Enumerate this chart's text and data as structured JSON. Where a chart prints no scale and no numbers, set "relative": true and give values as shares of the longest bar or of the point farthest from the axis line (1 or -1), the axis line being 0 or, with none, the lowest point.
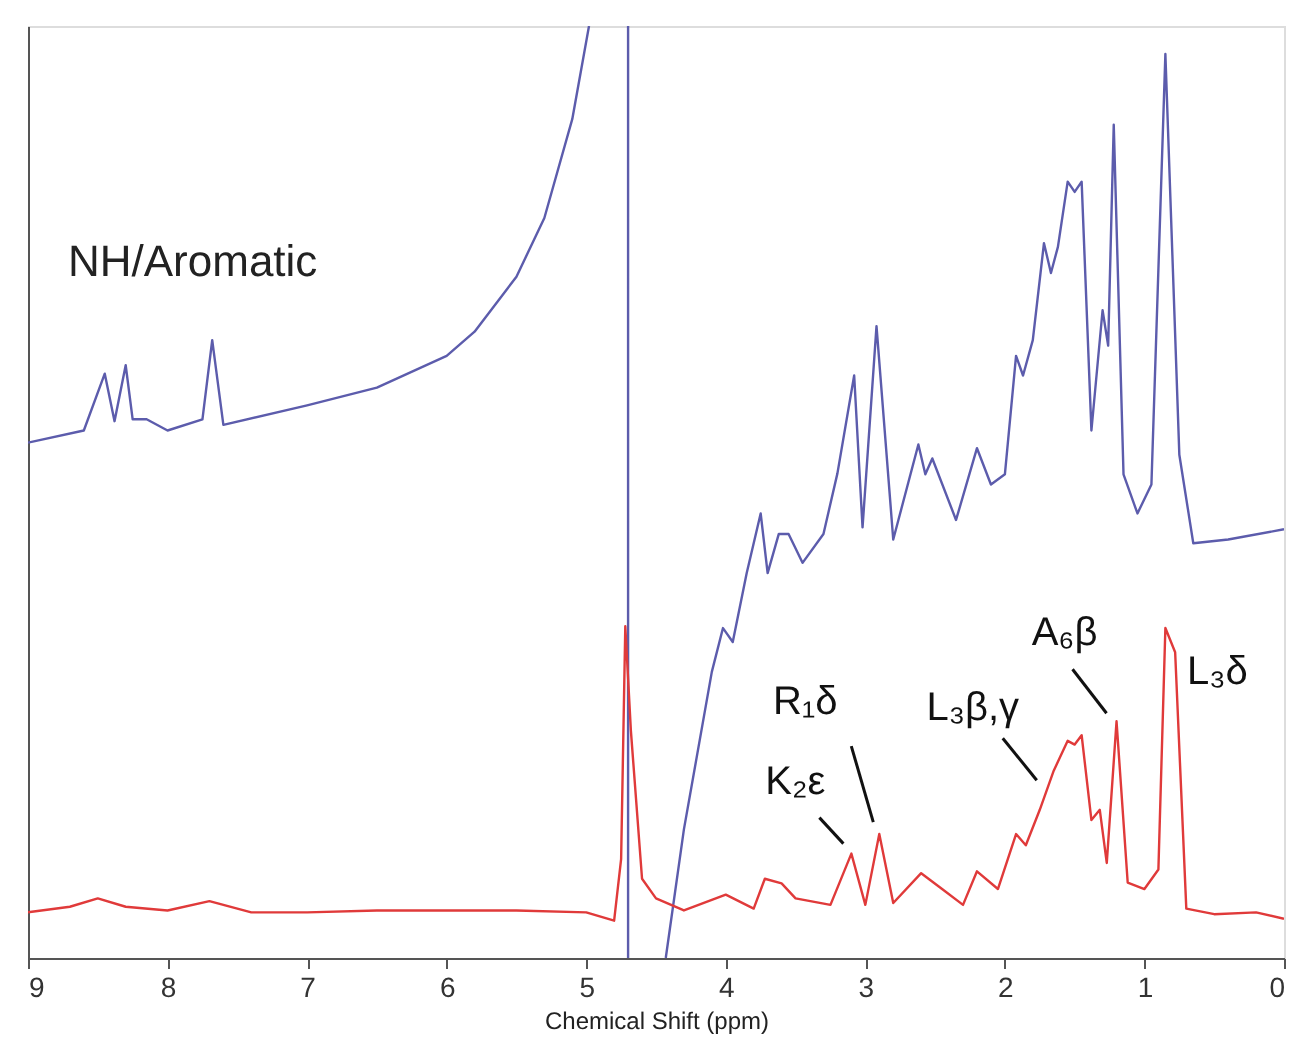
{
  "chart_data": {
    "type": "line",
    "relative": true,
    "xlabel": "Chemical Shift (ppm)",
    "xlim": [
      9,
      0
    ],
    "xticks": [
      9,
      8,
      7,
      6,
      5,
      4,
      3,
      2,
      1,
      0
    ],
    "grid": false,
    "marker": "none",
    "line_style": "solid",
    "annotations": [
      "NH/Aromatic",
      {
        "text": "K₂ε",
        "x": 3.1,
        "y": 0.112
      },
      {
        "text": "R₁δ",
        "x": 2.9,
        "y": 0.133
      },
      {
        "text": "L₃β,γ",
        "x": 1.7,
        "y": 0.18
      },
      {
        "text": "A₆β",
        "x": 1.2,
        "y": 0.254
      },
      {
        "text": "L₃δ",
        "x": 0.85,
        "y": 0.354
      }
    ],
    "series": [
      {
        "color": "#5c5cac",
        "x": [
          9,
          8.6,
          8.45,
          8.38,
          8.3,
          8.25,
          8.15,
          8.0,
          7.75,
          7.68,
          7.6,
          7.0,
          6.5,
          6.0,
          5.8,
          5.5,
          5.3,
          5.1,
          4.98,
          4.85,
          4.7,
          4.7,
          4.55,
          4.43,
          4.3,
          4.1,
          4.02,
          3.95,
          3.85,
          3.75,
          3.7,
          3.62,
          3.55,
          3.45,
          3.3,
          3.2,
          3.08,
          3.02,
          2.92,
          2.8,
          2.62,
          2.57,
          2.52,
          2.35,
          2.2,
          2.1,
          2.0,
          1.92,
          1.87,
          1.8,
          1.72,
          1.67,
          1.62,
          1.55,
          1.5,
          1.45,
          1.38,
          1.3,
          1.26,
          1.22,
          1.15,
          1.05,
          0.95,
          0.85,
          0.75,
          0.65,
          0.4,
          0.0
        ],
        "values": [
          0.553,
          0.566,
          0.627,
          0.576,
          0.636,
          0.578,
          0.578,
          0.566,
          0.578,
          0.663,
          0.572,
          0.593,
          0.612,
          0.646,
          0.672,
          0.731,
          0.794,
          0.9,
          1.0,
          null,
          1.0,
          0.0,
          null,
          0.0,
          0.138,
          0.307,
          0.354,
          0.339,
          0.413,
          0.477,
          0.413,
          0.455,
          0.455,
          0.424,
          0.455,
          0.52,
          0.625,
          0.462,
          0.678,
          0.449,
          0.551,
          0.519,
          0.536,
          0.47,
          0.547,
          0.508,
          0.519,
          0.646,
          0.625,
          0.663,
          0.767,
          0.735,
          0.763,
          0.833,
          0.822,
          0.833,
          0.566,
          0.695,
          0.657,
          0.894,
          0.519,
          0.477,
          0.508,
          0.97,
          0.54,
          0.445,
          0.449,
          0.46
        ]
      },
      {
        "color": "#e03a3a",
        "x": [
          9,
          8.7,
          8.5,
          8.3,
          8.0,
          7.7,
          7.4,
          7.0,
          6.5,
          6.0,
          5.5,
          5.0,
          4.8,
          4.75,
          4.72,
          4.68,
          4.6,
          4.5,
          4.3,
          4.0,
          3.8,
          3.72,
          3.6,
          3.5,
          3.25,
          3.1,
          3.0,
          2.9,
          2.8,
          2.6,
          2.45,
          2.3,
          2.2,
          2.05,
          1.92,
          1.85,
          1.75,
          1.65,
          1.55,
          1.5,
          1.45,
          1.38,
          1.32,
          1.27,
          1.2,
          1.12,
          1.0,
          0.9,
          0.85,
          0.78,
          0.7,
          0.5,
          0.2,
          0.0
        ],
        "values": [
          0.049,
          0.055,
          0.064,
          0.055,
          0.051,
          0.061,
          0.049,
          0.049,
          0.051,
          0.051,
          0.051,
          0.049,
          0.04,
          0.106,
          0.356,
          0.244,
          0.085,
          0.064,
          0.051,
          0.068,
          0.053,
          0.085,
          0.08,
          0.064,
          0.057,
          0.112,
          0.057,
          0.133,
          0.059,
          0.091,
          0.074,
          0.057,
          0.093,
          0.074,
          0.133,
          0.121,
          0.159,
          0.201,
          0.233,
          0.229,
          0.239,
          0.148,
          0.159,
          0.102,
          0.254,
          0.081,
          0.074,
          0.095,
          0.354,
          0.328,
          0.053,
          0.047,
          0.049,
          0.042
        ]
      }
    ]
  }
}
